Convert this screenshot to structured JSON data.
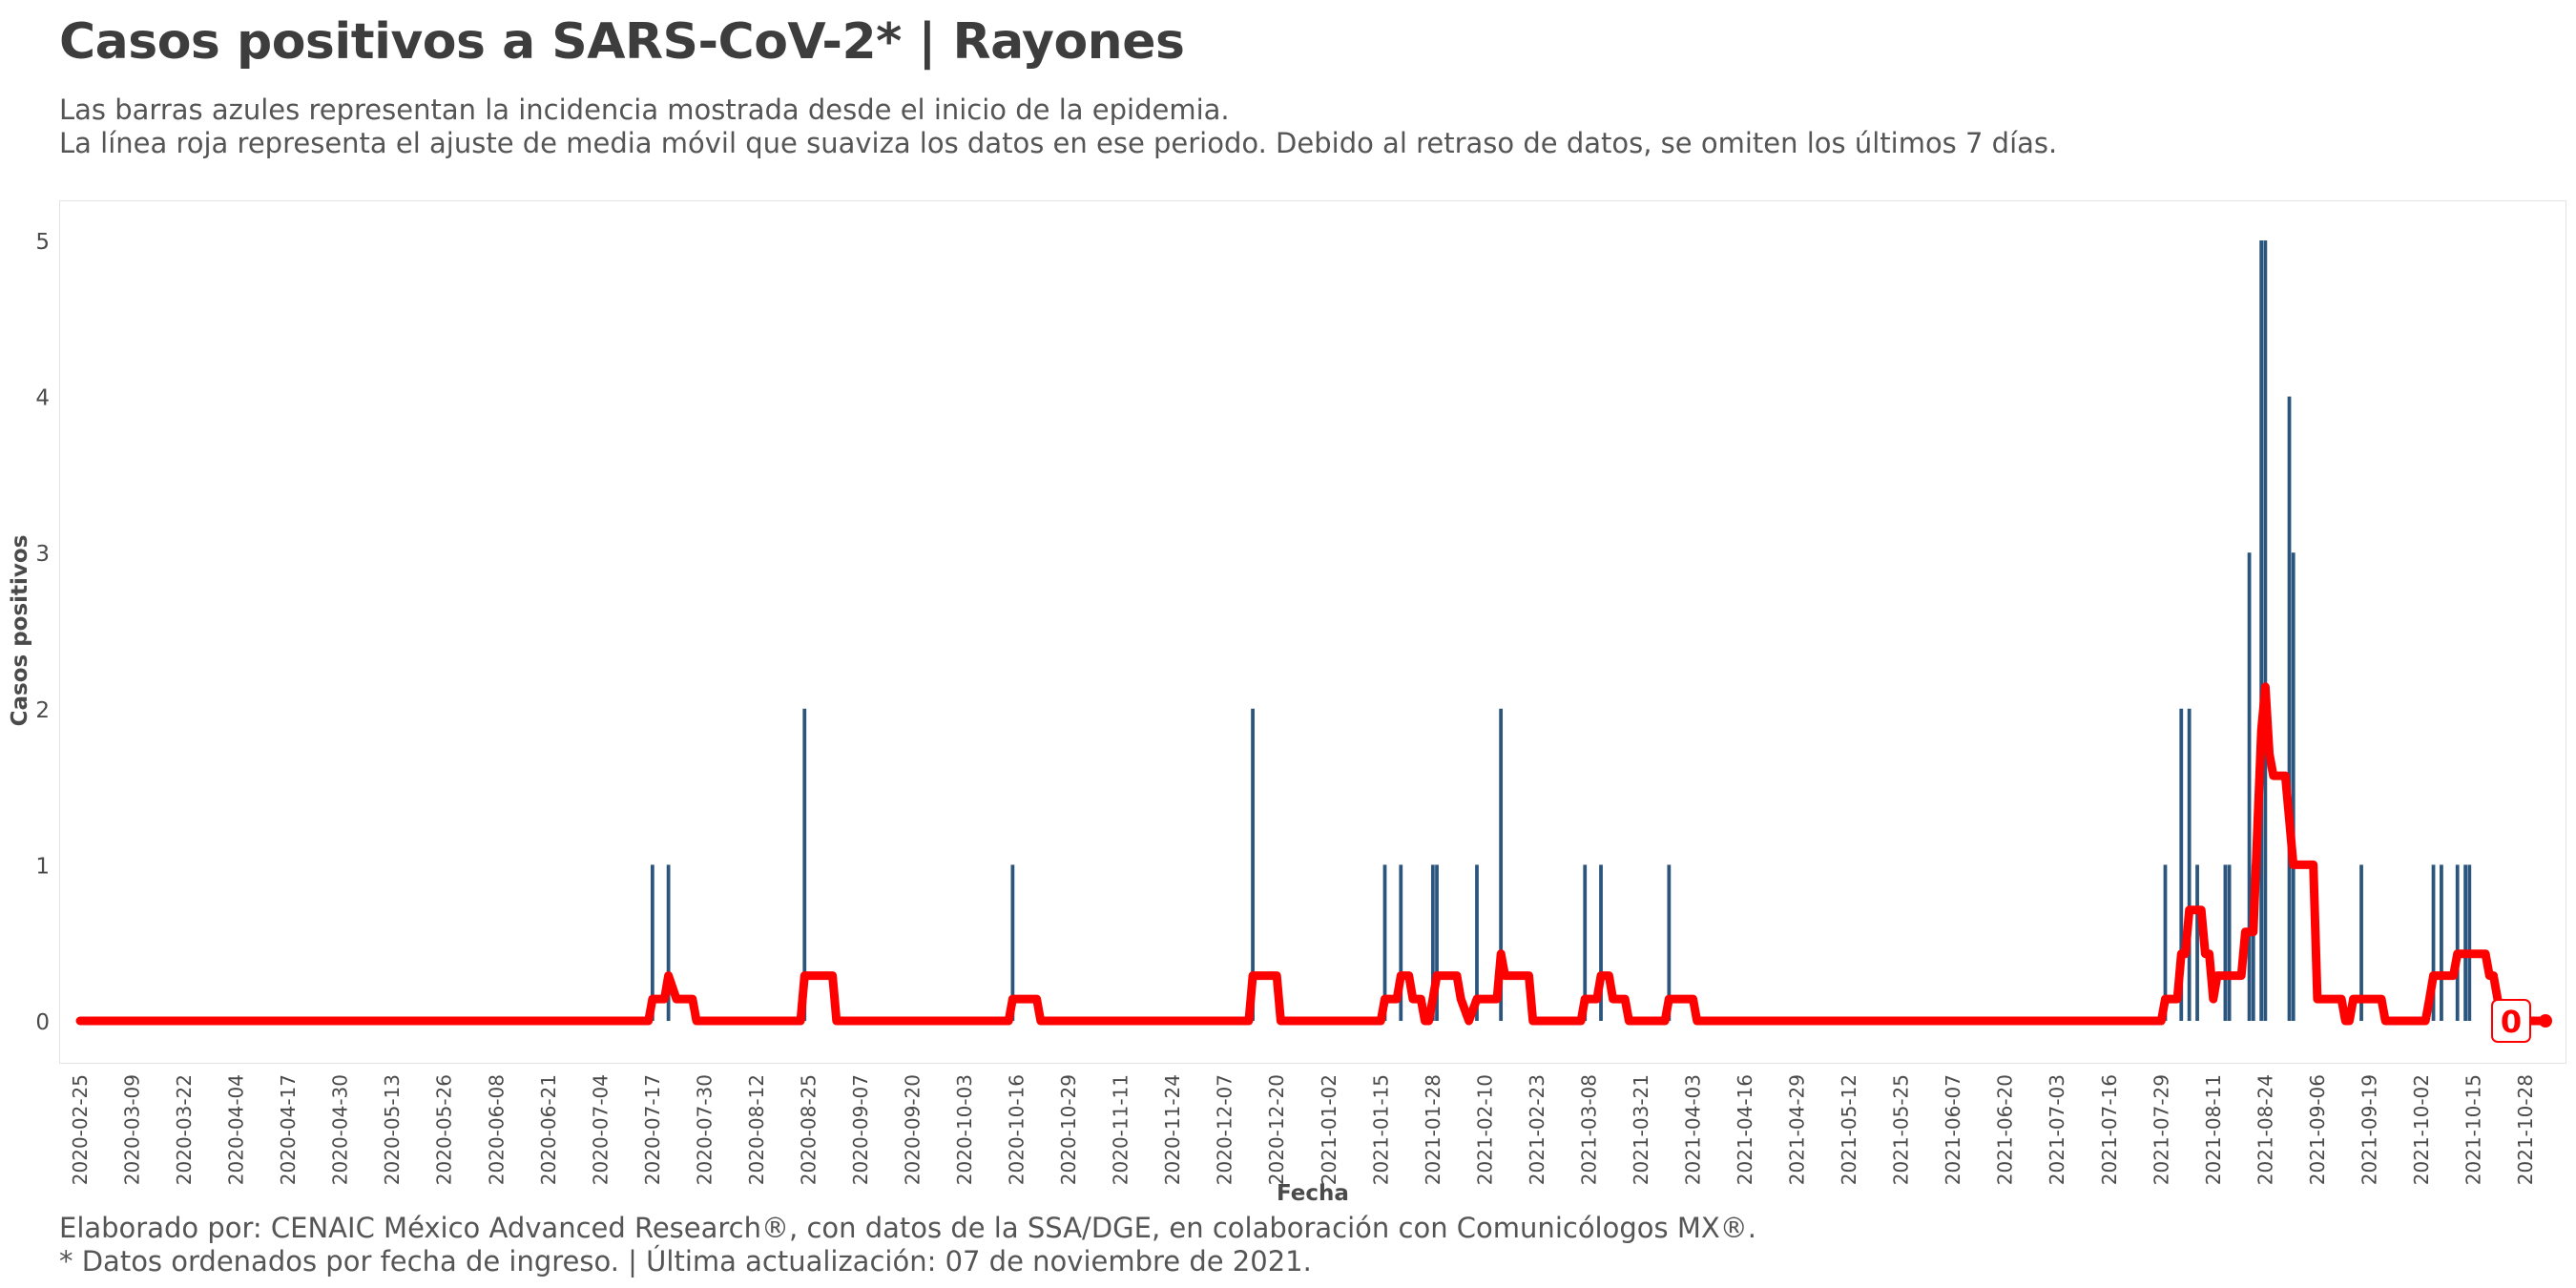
{
  "title": "Casos positivos a SARS-CoV-2* | Rayones",
  "subtitle_line1": "Las barras azules representan la incidencia mostrada desde el inicio de la epidemia.",
  "subtitle_line2": "La línea roja representa el ajuste de media móvil que suaviza los datos en ese periodo. Debido al retraso de datos, se omiten los últimos 7 días.",
  "footer_line1": "Elaborado por: CENAIC México Advanced Research®, con datos de la SSA/DGE, en colaboración con Comunicólogos MX®.",
  "footer_line2": "* Datos ordenados por fecha de ingreso. | Última actualización: 07 de noviembre de 2021.",
  "colors": {
    "bars": "#2b557d",
    "line": "#ff0000",
    "text": "#4a4a4a"
  },
  "chart_data": {
    "type": "bar",
    "x_start": "2020-02-25",
    "x_end": "2021-11-02",
    "xlabel": "Fecha",
    "ylabel": "Casos positivos",
    "ylim": [
      0,
      5
    ],
    "yticks": [
      0,
      1,
      2,
      3,
      4,
      5
    ],
    "xticks": [
      "2020-02-25",
      "2020-03-09",
      "2020-03-22",
      "2020-04-04",
      "2020-04-17",
      "2020-04-30",
      "2020-05-13",
      "2020-05-26",
      "2020-06-08",
      "2020-06-21",
      "2020-07-04",
      "2020-07-17",
      "2020-07-30",
      "2020-08-12",
      "2020-08-25",
      "2020-09-07",
      "2020-09-20",
      "2020-10-03",
      "2020-10-16",
      "2020-10-29",
      "2020-11-11",
      "2020-11-24",
      "2020-12-07",
      "2020-12-20",
      "2021-01-02",
      "2021-01-15",
      "2021-01-28",
      "2021-02-10",
      "2021-02-23",
      "2021-03-08",
      "2021-03-21",
      "2021-04-03",
      "2021-04-16",
      "2021-04-29",
      "2021-05-12",
      "2021-05-25",
      "2021-06-07",
      "2021-06-20",
      "2021-07-03",
      "2021-07-16",
      "2021-07-29",
      "2021-08-11",
      "2021-08-24",
      "2021-09-06",
      "2021-09-19",
      "2021-10-02",
      "2021-10-15",
      "2021-10-28"
    ],
    "series": [
      {
        "kind": "bar",
        "points": [
          [
            "2020-07-17",
            1
          ],
          [
            "2020-07-21",
            1
          ],
          [
            "2020-08-24",
            2
          ],
          [
            "2020-10-15",
            1
          ],
          [
            "2020-12-14",
            2
          ],
          [
            "2021-01-16",
            1
          ],
          [
            "2021-01-20",
            1
          ],
          [
            "2021-01-28",
            1
          ],
          [
            "2021-01-29",
            1
          ],
          [
            "2021-02-08",
            1
          ],
          [
            "2021-02-14",
            2
          ],
          [
            "2021-03-07",
            1
          ],
          [
            "2021-03-11",
            1
          ],
          [
            "2021-03-28",
            1
          ],
          [
            "2021-07-30",
            1
          ],
          [
            "2021-08-03",
            2
          ],
          [
            "2021-08-05",
            2
          ],
          [
            "2021-08-07",
            1
          ],
          [
            "2021-08-14",
            1
          ],
          [
            "2021-08-15",
            1
          ],
          [
            "2021-08-20",
            3
          ],
          [
            "2021-08-21",
            1
          ],
          [
            "2021-08-23",
            5
          ],
          [
            "2021-08-24",
            5
          ],
          [
            "2021-08-30",
            4
          ],
          [
            "2021-08-31",
            3
          ],
          [
            "2021-09-17",
            1
          ],
          [
            "2021-10-05",
            1
          ],
          [
            "2021-10-07",
            1
          ],
          [
            "2021-10-11",
            1
          ],
          [
            "2021-10-13",
            1
          ],
          [
            "2021-10-14",
            1
          ]
        ]
      },
      {
        "kind": "line",
        "points": [
          [
            "2020-02-25",
            0
          ],
          [
            "2020-07-16",
            0
          ],
          [
            "2020-07-17",
            0.14
          ],
          [
            "2020-07-20",
            0.14
          ],
          [
            "2020-07-21",
            0.29
          ],
          [
            "2020-07-23",
            0.14
          ],
          [
            "2020-07-27",
            0.14
          ],
          [
            "2020-07-28",
            0
          ],
          [
            "2020-08-23",
            0
          ],
          [
            "2020-08-24",
            0.29
          ],
          [
            "2020-08-31",
            0.29
          ],
          [
            "2020-09-01",
            0
          ],
          [
            "2020-10-14",
            0
          ],
          [
            "2020-10-15",
            0.14
          ],
          [
            "2020-10-21",
            0.14
          ],
          [
            "2020-10-22",
            0
          ],
          [
            "2020-12-13",
            0
          ],
          [
            "2020-12-14",
            0.29
          ],
          [
            "2020-12-20",
            0.29
          ],
          [
            "2020-12-21",
            0
          ],
          [
            "2021-01-15",
            0
          ],
          [
            "2021-01-16",
            0.14
          ],
          [
            "2021-01-19",
            0.14
          ],
          [
            "2021-01-20",
            0.29
          ],
          [
            "2021-01-22",
            0.29
          ],
          [
            "2021-01-23",
            0.14
          ],
          [
            "2021-01-25",
            0.14
          ],
          [
            "2021-01-26",
            0
          ],
          [
            "2021-01-27",
            0
          ],
          [
            "2021-01-28",
            0.14
          ],
          [
            "2021-01-29",
            0.29
          ],
          [
            "2021-02-03",
            0.29
          ],
          [
            "2021-02-04",
            0.14
          ],
          [
            "2021-02-06",
            0
          ],
          [
            "2021-02-08",
            0.14
          ],
          [
            "2021-02-13",
            0.14
          ],
          [
            "2021-02-14",
            0.43
          ],
          [
            "2021-02-15",
            0.29
          ],
          [
            "2021-02-21",
            0.29
          ],
          [
            "2021-02-22",
            0
          ],
          [
            "2021-03-06",
            0
          ],
          [
            "2021-03-07",
            0.14
          ],
          [
            "2021-03-10",
            0.14
          ],
          [
            "2021-03-11",
            0.29
          ],
          [
            "2021-03-13",
            0.29
          ],
          [
            "2021-03-14",
            0.14
          ],
          [
            "2021-03-17",
            0.14
          ],
          [
            "2021-03-18",
            0
          ],
          [
            "2021-03-27",
            0
          ],
          [
            "2021-03-28",
            0.14
          ],
          [
            "2021-04-03",
            0.14
          ],
          [
            "2021-04-04",
            0
          ],
          [
            "2021-07-29",
            0
          ],
          [
            "2021-07-30",
            0.14
          ],
          [
            "2021-08-02",
            0.14
          ],
          [
            "2021-08-03",
            0.43
          ],
          [
            "2021-08-04",
            0.43
          ],
          [
            "2021-08-05",
            0.71
          ],
          [
            "2021-08-08",
            0.71
          ],
          [
            "2021-08-09",
            0.43
          ],
          [
            "2021-08-10",
            0.43
          ],
          [
            "2021-08-11",
            0.14
          ],
          [
            "2021-08-12",
            0.29
          ],
          [
            "2021-08-18",
            0.29
          ],
          [
            "2021-08-19",
            0.57
          ],
          [
            "2021-08-21",
            0.57
          ],
          [
            "2021-08-23",
            1.86
          ],
          [
            "2021-08-24",
            2.14
          ],
          [
            "2021-08-25",
            1.71
          ],
          [
            "2021-08-26",
            1.57
          ],
          [
            "2021-08-29",
            1.57
          ],
          [
            "2021-08-30",
            1.29
          ],
          [
            "2021-08-31",
            1.0
          ],
          [
            "2021-09-05",
            1.0
          ],
          [
            "2021-09-06",
            0.14
          ],
          [
            "2021-09-12",
            0.14
          ],
          [
            "2021-09-13",
            0
          ],
          [
            "2021-09-14",
            0
          ],
          [
            "2021-09-15",
            0.14
          ],
          [
            "2021-09-22",
            0.14
          ],
          [
            "2021-09-23",
            0
          ],
          [
            "2021-10-03",
            0
          ],
          [
            "2021-10-04",
            0.14
          ],
          [
            "2021-10-05",
            0.29
          ],
          [
            "2021-10-09",
            0.29
          ],
          [
            "2021-10-10",
            0.29
          ],
          [
            "2021-10-11",
            0.43
          ],
          [
            "2021-10-18",
            0.43
          ],
          [
            "2021-10-19",
            0.29
          ],
          [
            "2021-10-20",
            0.29
          ],
          [
            "2021-10-22",
            0
          ],
          [
            "2021-11-02",
            0
          ]
        ]
      }
    ],
    "end_label": "0"
  }
}
